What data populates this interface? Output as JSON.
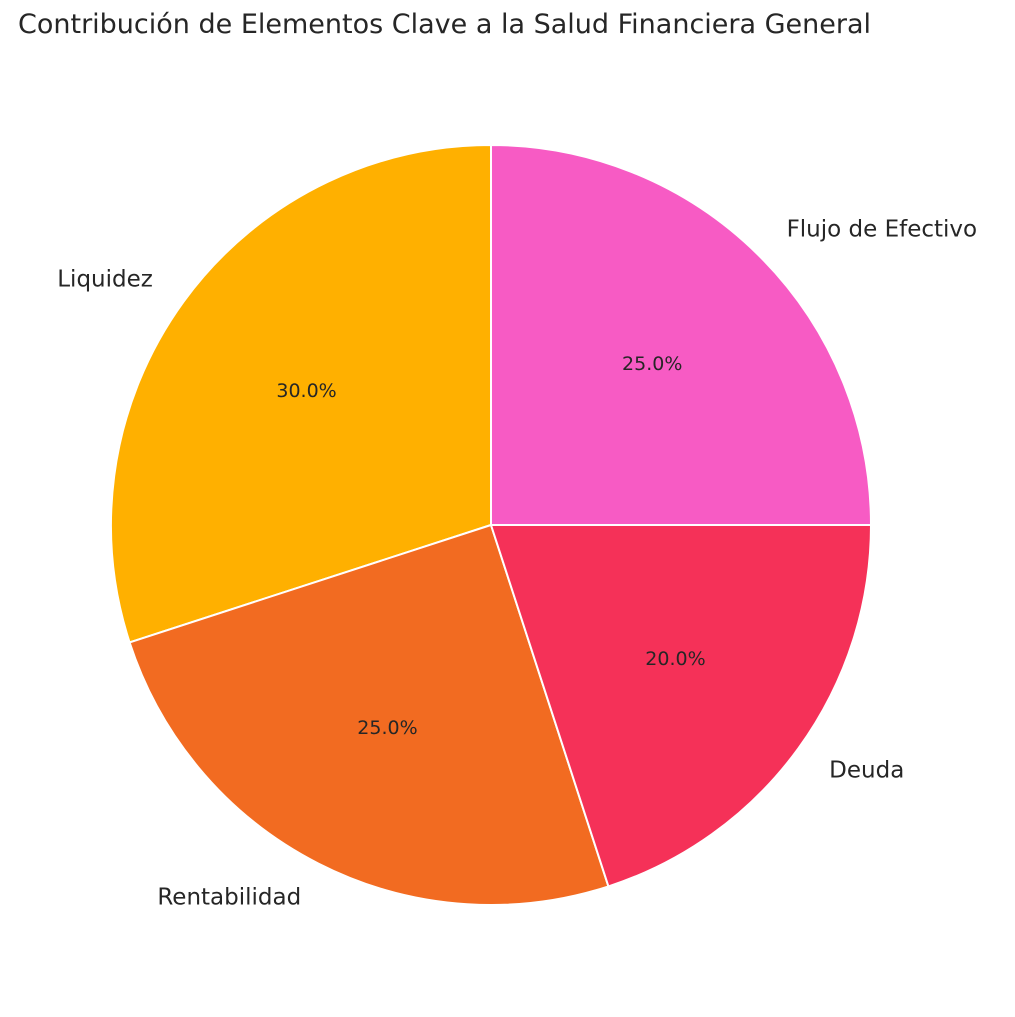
{
  "chart_data": {
    "type": "pie",
    "title": "Contribución de Elementos Clave a la Salud Financiera General",
    "start_angle_deg": 90,
    "direction": "counterclockwise",
    "slices": [
      {
        "label": "Liquidez",
        "value": 30.0,
        "percent_label": "30.0%",
        "color": "#FFB000"
      },
      {
        "label": "Rentabilidad",
        "value": 25.0,
        "percent_label": "25.0%",
        "color": "#F26B21"
      },
      {
        "label": "Deuda",
        "value": 20.0,
        "percent_label": "20.0%",
        "color": "#F53158"
      },
      {
        "label": "Flujo de Efectivo",
        "value": 25.0,
        "percent_label": "25.0%",
        "color": "#F75BC4"
      }
    ]
  }
}
